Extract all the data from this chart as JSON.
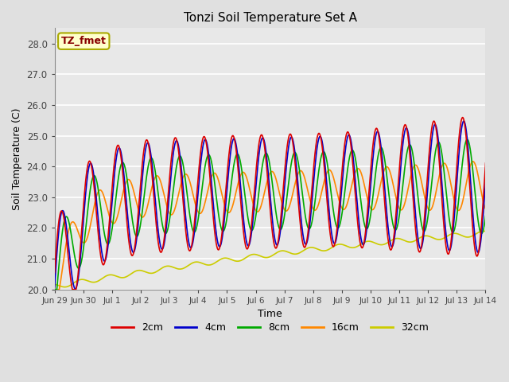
{
  "title": "Tonzi Soil Temperature Set A",
  "xlabel": "Time",
  "ylabel": "Soil Temperature (C)",
  "annotation_text": "TZ_fmet",
  "annotation_bg": "#FFFFCC",
  "annotation_border": "#AAAA00",
  "annotation_text_color": "#880000",
  "ylim": [
    20.0,
    28.5
  ],
  "yticks": [
    20.0,
    21.0,
    22.0,
    23.0,
    24.0,
    25.0,
    26.0,
    27.0,
    28.0
  ],
  "bg_color": "#E0E0E0",
  "plot_bg_color": "#E8E8E8",
  "legend_labels": [
    "2cm",
    "4cm",
    "8cm",
    "16cm",
    "32cm"
  ],
  "line_colors": [
    "#DD0000",
    "#0000CC",
    "#00AA00",
    "#FF8800",
    "#CCCC00"
  ],
  "line_widths": [
    1.2,
    1.2,
    1.2,
    1.2,
    1.2
  ],
  "tick_labels": [
    "Jun 29",
    "Jun 30",
    "Jul 1",
    "Jul 2",
    "Jul 3",
    "Jul 4",
    "Jul 5",
    "Jul 6",
    "Jul 7",
    "Jul 8",
    "Jul 9",
    "Jul 10",
    "Jul 11",
    "Jul 12",
    "Jul 13",
    "Jul 14"
  ],
  "tick_positions": [
    0,
    1,
    2,
    3,
    4,
    5,
    6,
    7,
    8,
    9,
    10,
    11,
    12,
    13,
    14,
    15
  ]
}
